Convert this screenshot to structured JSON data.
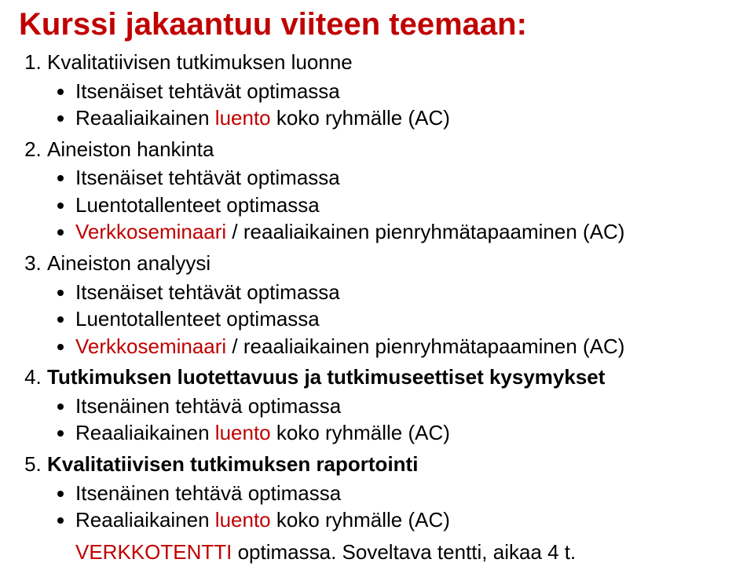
{
  "colors": {
    "accent": "#c00000",
    "text": "#000000",
    "background": "#ffffff"
  },
  "typography": {
    "title_fontsize_pt": 30,
    "body_fontsize_pt": 20,
    "font_family": "Arial"
  },
  "title": "Kurssi jakaantuu viiteen teemaan:",
  "items": [
    {
      "title": "Kvalitatiivisen tutkimuksen luonne",
      "sub": [
        {
          "plain": "Itsenäiset tehtävät optimassa"
        },
        {
          "pre": "Reaaliaikainen ",
          "red": "luento",
          "post": " koko ryhmälle (AC)"
        }
      ]
    },
    {
      "title": "Aineiston hankinta",
      "sub": [
        {
          "plain": "Itsenäiset tehtävät optimassa"
        },
        {
          "plain": "Luentotallenteet optimassa"
        },
        {
          "red": "Verkkoseminaari",
          "post": " / reaaliaikainen pienryhmätapaaminen (AC)"
        }
      ]
    },
    {
      "title": "Aineiston analyysi",
      "sub": [
        {
          "plain": "Itsenäiset tehtävät optimassa"
        },
        {
          "plain": "Luentotallenteet optimassa"
        },
        {
          "red": "Verkkoseminaari",
          "post": " / reaaliaikainen pienryhmätapaaminen (AC)"
        }
      ]
    },
    {
      "title_bold": "Tutkimuksen luotettavuus ja tutkimuseettiset kysymykset",
      "sub": [
        {
          "plain": "Itsenäinen tehtävä optimassa"
        },
        {
          "pre": "Reaaliaikainen ",
          "red": "luento",
          "post": " koko ryhmälle (AC)"
        }
      ]
    },
    {
      "title_bold": "Kvalitatiivisen tutkimuksen raportointi",
      "sub": [
        {
          "plain": "Itsenäinen tehtävä optimassa"
        },
        {
          "pre": "Reaaliaikainen ",
          "red": "luento",
          "post": " koko ryhmälle (AC)"
        }
      ]
    }
  ],
  "final": {
    "red": "VERKKOTENTTI",
    "post": " optimassa. Soveltava tentti, aikaa 4 t."
  }
}
